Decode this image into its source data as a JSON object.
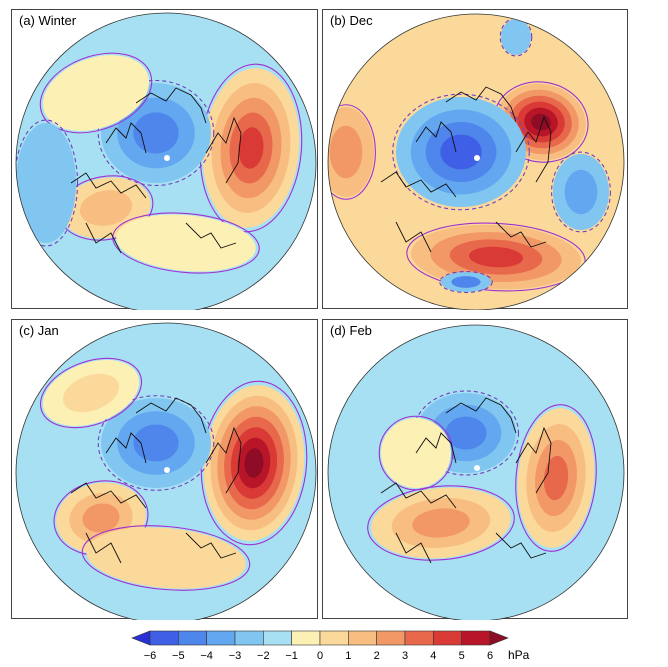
{
  "panels": [
    {
      "id": "a",
      "label": "(a)  Winter"
    },
    {
      "id": "b",
      "label": "(b)  Dec"
    },
    {
      "id": "c",
      "label": "(c)  Jan"
    },
    {
      "id": "d",
      "label": "(d)  Feb"
    }
  ],
  "colorbar": {
    "ticks": [
      "−6",
      "−5",
      "−4",
      "−3",
      "−2",
      "−1",
      "0",
      "1",
      "2",
      "3",
      "4",
      "5",
      "6"
    ],
    "unit": "hPa",
    "colors": [
      "#2a2fd8",
      "#3e5fe6",
      "#4f86ec",
      "#62a7ef",
      "#80c6f0",
      "#a6e0f2",
      "#fdf0b4",
      "#fbd99a",
      "#f8bd80",
      "#f29866",
      "#e8684c",
      "#d93a36",
      "#b81528",
      "#8e0c25"
    ]
  },
  "colors": {
    "contour_positive": "#a030d0",
    "contour_negative": "#7040c0",
    "coast": "#111111",
    "pole": "#ffffff"
  }
}
